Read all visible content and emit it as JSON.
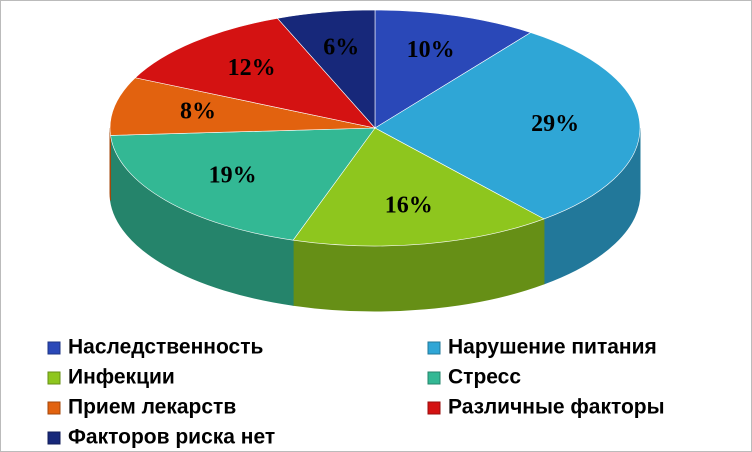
{
  "chart_data": {
    "type": "pie3d",
    "categories": [
      "Наследственность",
      "Нарушение питания",
      "Инфекции",
      "Стресс",
      "Прием лекарств",
      "Различные факторы",
      "Факторов риска нет"
    ],
    "values": [
      10,
      29,
      16,
      19,
      8,
      12,
      6
    ],
    "value_labels": [
      "10%",
      "29%",
      "16%",
      "19%",
      "8%",
      "12%",
      "6%"
    ],
    "colors": [
      "#2a48b8",
      "#2fa6d6",
      "#8ec61e",
      "#33b894",
      "#e2620f",
      "#d41212",
      "#17287a"
    ],
    "legend": "bottom"
  }
}
